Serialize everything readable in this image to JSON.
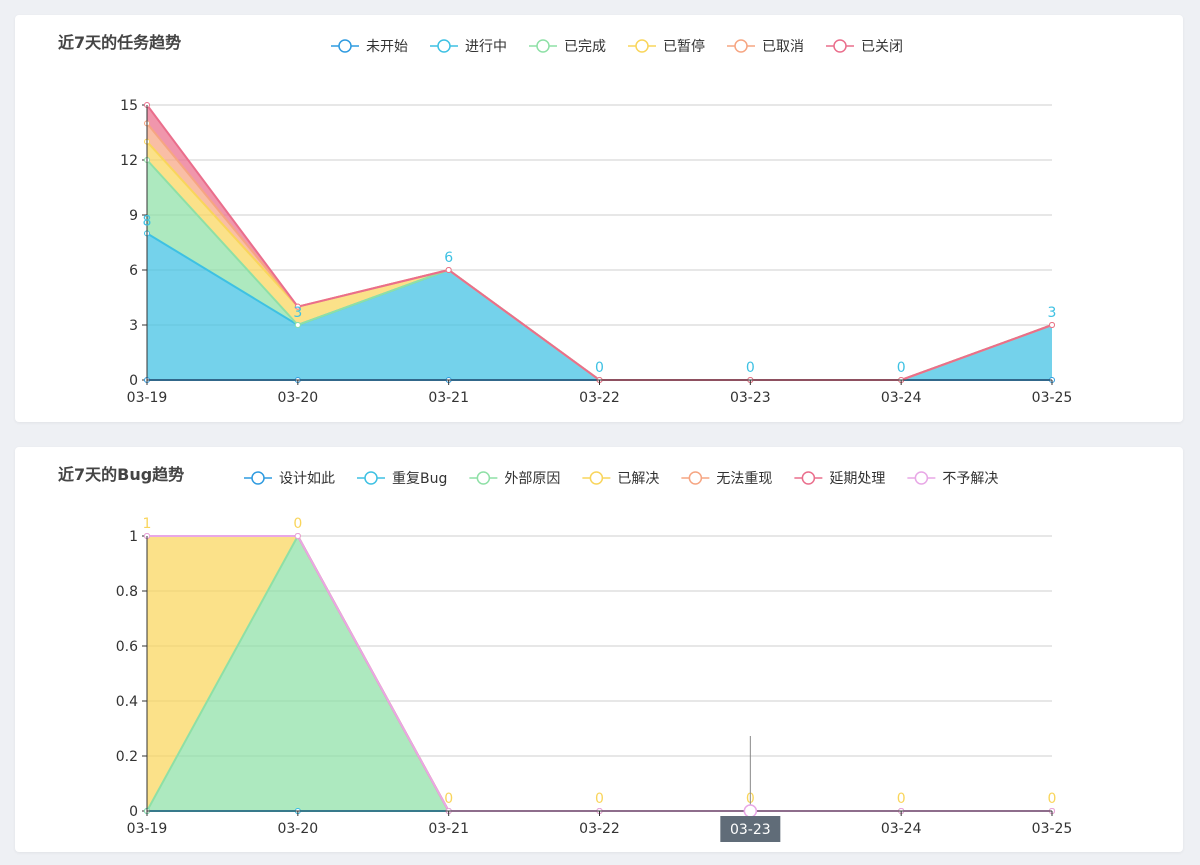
{
  "chart_data": [
    {
      "type": "area",
      "stacked": true,
      "title": "近7天的任务趋势",
      "categories": [
        "03-19",
        "03-20",
        "03-21",
        "03-22",
        "03-23",
        "03-24",
        "03-25"
      ],
      "ylim": [
        0,
        15
      ],
      "yticks": [
        0,
        3,
        6,
        9,
        12,
        15
      ],
      "grid": true,
      "legend_position": "top",
      "series": [
        {
          "name": "未开始",
          "color": "#2f9be0",
          "values": [
            0,
            0,
            0,
            0,
            0,
            0,
            0
          ]
        },
        {
          "name": "进行中",
          "color": "#3ec1e3",
          "values": [
            8,
            3,
            6,
            0,
            0,
            0,
            3
          ]
        },
        {
          "name": "已完成",
          "color": "#8ee0a6",
          "values": [
            4,
            0,
            0,
            0,
            0,
            0,
            0
          ]
        },
        {
          "name": "已暂停",
          "color": "#f9d55b",
          "values": [
            1,
            1,
            0,
            0,
            0,
            0,
            0
          ]
        },
        {
          "name": "已取消",
          "color": "#f6a582",
          "values": [
            1,
            0,
            0,
            0,
            0,
            0,
            0
          ]
        },
        {
          "name": "已关闭",
          "color": "#ea6e8c",
          "values": [
            1,
            0,
            0,
            0,
            0,
            0,
            0
          ]
        }
      ],
      "data_labels": {
        "series": "进行中",
        "values": [
          8,
          3,
          6,
          0,
          0,
          0,
          3
        ]
      }
    },
    {
      "type": "area",
      "stacked": true,
      "title": "近7天的Bug趋势",
      "categories": [
        "03-19",
        "03-20",
        "03-21",
        "03-22",
        "03-23",
        "03-24",
        "03-25"
      ],
      "ylim": [
        0,
        1
      ],
      "yticks": [
        0,
        0.2,
        0.4,
        0.6,
        0.8,
        1
      ],
      "grid": true,
      "legend_position": "top",
      "series": [
        {
          "name": "设计如此",
          "color": "#2f9be0",
          "values": [
            0,
            0,
            0,
            0,
            0,
            0,
            0
          ]
        },
        {
          "name": "重复Bug",
          "color": "#3ec1e3",
          "values": [
            0,
            0,
            0,
            0,
            0,
            0,
            0
          ]
        },
        {
          "name": "外部原因",
          "color": "#8ee0a6",
          "values": [
            0,
            1,
            0,
            0,
            0,
            0,
            0
          ]
        },
        {
          "name": "已解决",
          "color": "#f9d55b",
          "values": [
            1,
            0,
            0,
            0,
            0,
            0,
            0
          ]
        },
        {
          "name": "无法重现",
          "color": "#f6a582",
          "values": [
            0,
            0,
            0,
            0,
            0,
            0,
            0
          ]
        },
        {
          "name": "延期处理",
          "color": "#ea6e8c",
          "values": [
            0,
            0,
            0,
            0,
            0,
            0,
            0
          ]
        },
        {
          "name": "不予解决",
          "color": "#e8a7e6",
          "values": [
            0,
            0,
            0,
            0,
            0,
            0,
            0
          ]
        }
      ],
      "data_labels": {
        "series": "已解决",
        "values": [
          1,
          0,
          0,
          0,
          0,
          0,
          0
        ]
      },
      "hover": {
        "category": "03-23",
        "label": "03-23"
      }
    }
  ]
}
